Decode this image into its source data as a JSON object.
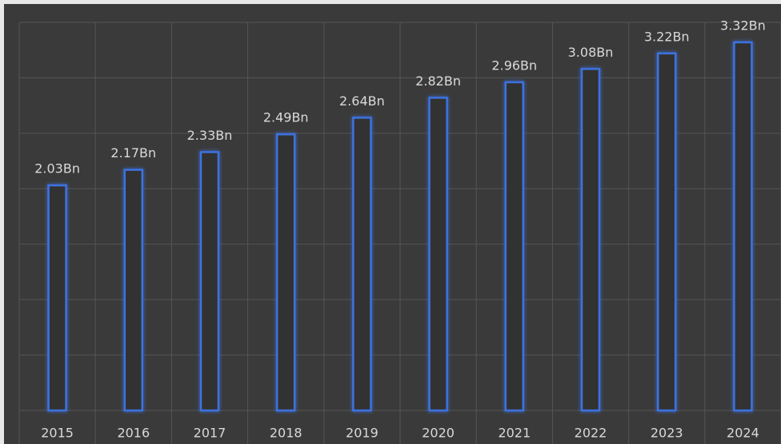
{
  "chart_data": {
    "type": "bar",
    "categories": [
      "2015",
      "2016",
      "2017",
      "2018",
      "2019",
      "2020",
      "2021",
      "2022",
      "2023",
      "2024"
    ],
    "values": [
      2.03,
      2.17,
      2.33,
      2.49,
      2.64,
      2.82,
      2.96,
      3.08,
      3.22,
      3.32
    ],
    "value_labels": [
      "2.03Bn",
      "2.17Bn",
      "2.33Bn",
      "2.49Bn",
      "2.64Bn",
      "2.82Bn",
      "2.96Bn",
      "3.08Bn",
      "3.22Bn",
      "3.32Bn"
    ],
    "color": "#3d72e0",
    "ylim": [
      0,
      3.5
    ],
    "grid": true
  }
}
